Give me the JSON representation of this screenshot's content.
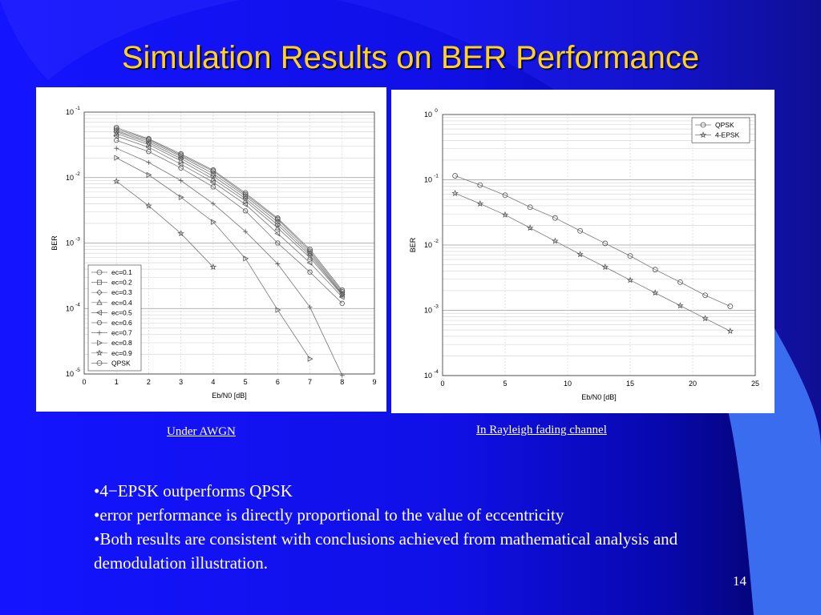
{
  "slide": {
    "title": "Simulation Results on BER Performance",
    "caption_left": "Under AWGN",
    "caption_right": "In Rayleigh fading channel",
    "bullets": [
      "•4−EPSK outperforms QPSK",
      "•error performance is directly proportional to the value of eccentricity",
      "•Both results are consistent with conclusions achieved from mathematical analysis and demodulation illustration."
    ],
    "page_number": "14",
    "colors": {
      "background": "#1414ff",
      "title": "#ffd21f",
      "text": "#ffffff",
      "accent_shape": "#3a6cf0"
    }
  },
  "chart_data": [
    {
      "type": "line",
      "yscale": "log",
      "xlabel": "Eb/N0 [dB]",
      "ylabel": "BER",
      "xlim": [
        0,
        9
      ],
      "ylim": [
        1e-05,
        0.1
      ],
      "xticks": [
        "0",
        "1",
        "2",
        "3",
        "4",
        "5",
        "6",
        "7",
        "8",
        "9"
      ],
      "yticks": [
        {
          "base": "10",
          "exp": "-1"
        },
        {
          "base": "10",
          "exp": "-2"
        },
        {
          "base": "10",
          "exp": "-3"
        },
        {
          "base": "10",
          "exp": "-4"
        },
        {
          "base": "10",
          "exp": "-5"
        }
      ],
      "grid": true,
      "legend_position": "bottom-left",
      "x": [
        1,
        2,
        3,
        4,
        5,
        6,
        7,
        8
      ],
      "series": [
        {
          "name": "ec=0.1",
          "marker": "circle",
          "values": [
            0.055,
            0.038,
            0.022,
            0.0125,
            0.0055,
            0.0023,
            0.00075,
            0.00018
          ]
        },
        {
          "name": "ec=0.2",
          "marker": "square",
          "values": [
            0.052,
            0.036,
            0.021,
            0.0115,
            0.0052,
            0.0021,
            0.0007,
            0.00017
          ]
        },
        {
          "name": "ec=0.3",
          "marker": "diamond",
          "values": [
            0.05,
            0.034,
            0.0195,
            0.0105,
            0.0048,
            0.0019,
            0.00065,
            0.000165
          ]
        },
        {
          "name": "ec=0.4",
          "marker": "triangle",
          "values": [
            0.047,
            0.032,
            0.018,
            0.0095,
            0.0044,
            0.0017,
            0.0006,
            0.00016
          ]
        },
        {
          "name": "ec=0.5",
          "marker": "triangle-left",
          "values": [
            0.043,
            0.029,
            0.016,
            0.0085,
            0.0039,
            0.0014,
            0.0005,
            0.00015
          ]
        },
        {
          "name": "ec=0.6",
          "marker": "hexagon",
          "values": [
            0.037,
            0.025,
            0.014,
            0.0072,
            0.0031,
            0.001,
            0.00036,
            0.00012
          ]
        },
        {
          "name": "ec=0.7",
          "marker": "plus",
          "values": [
            0.028,
            0.017,
            0.009,
            0.004,
            0.0015,
            0.00048,
            0.000105,
            9.5e-06
          ]
        },
        {
          "name": "ec=0.8",
          "marker": "triangle-right",
          "values": [
            0.02,
            0.011,
            0.005,
            0.0021,
            0.00058,
            9.5e-05,
            1.7e-05,
            null
          ]
        },
        {
          "name": "ec=0.9",
          "marker": "star",
          "values": [
            0.0088,
            0.0037,
            0.0014,
            0.00043,
            null,
            null,
            null,
            null
          ]
        },
        {
          "name": "QPSK",
          "marker": "circle",
          "values": [
            0.058,
            0.039,
            0.023,
            0.013,
            0.0058,
            0.0024,
            0.0008,
            0.00019
          ]
        }
      ]
    },
    {
      "type": "line",
      "yscale": "log",
      "xlabel": "Eb/N0 [dB]",
      "ylabel": "BER",
      "xlim": [
        0,
        25
      ],
      "ylim": [
        0.0001,
        1
      ],
      "xticks": [
        "0",
        "5",
        "10",
        "15",
        "20",
        "25"
      ],
      "yticks": [
        {
          "base": "10",
          "exp": "0"
        },
        {
          "base": "10",
          "exp": "-1"
        },
        {
          "base": "10",
          "exp": "-2"
        },
        {
          "base": "10",
          "exp": "-3"
        },
        {
          "base": "10",
          "exp": "-4"
        }
      ],
      "grid": true,
      "legend_position": "top-right",
      "x": [
        1,
        3,
        5,
        7,
        9,
        11,
        13,
        15,
        17,
        19,
        21,
        23
      ],
      "series": [
        {
          "name": "QPSK",
          "marker": "circle",
          "values": [
            0.115,
            0.083,
            0.058,
            0.038,
            0.026,
            0.0165,
            0.0106,
            0.0068,
            0.0042,
            0.0027,
            0.0017,
            0.00115
          ]
        },
        {
          "name": "4-EPSK",
          "marker": "star",
          "values": [
            0.062,
            0.043,
            0.029,
            0.0183,
            0.0115,
            0.0072,
            0.0046,
            0.0029,
            0.00185,
            0.00118,
            0.00075,
            0.00048
          ]
        }
      ]
    }
  ]
}
